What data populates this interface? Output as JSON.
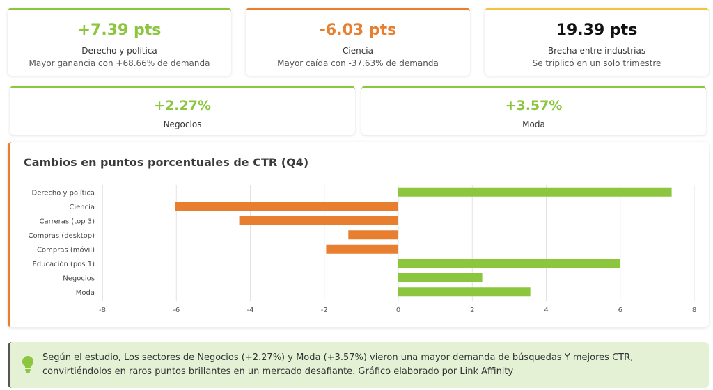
{
  "kpis_top": [
    {
      "value": "+7.39 pts",
      "label": "Derecho y política",
      "sub": "Mayor ganancia con +68.66% de demanda",
      "color": "#8cc63f"
    },
    {
      "value": "-6.03 pts",
      "label": "Ciencia",
      "sub": "Mayor caída con -37.63% de demanda",
      "color": "#e87e2f"
    },
    {
      "value": "19.39 pts",
      "label": "Brecha entre industrias",
      "sub": "Se triplicó en un solo trimestre",
      "color": "#111111"
    }
  ],
  "kpis_mid": [
    {
      "value": "+2.27%",
      "label": "Negocios",
      "color": "#8cc63f"
    },
    {
      "value": "+3.57%",
      "label": "Moda",
      "color": "#8cc63f"
    }
  ],
  "chart_data": {
    "type": "bar",
    "orientation": "horizontal",
    "title": "Cambios en puntos porcentuales de CTR (Q4)",
    "categories": [
      "Derecho y política",
      "Ciencia",
      "Carreras (top 3)",
      "Compras (desktop)",
      "Compras (móvil)",
      "Educación (pos 1)",
      "Negocios",
      "Moda"
    ],
    "values": [
      7.39,
      -6.03,
      -4.3,
      -1.35,
      -1.95,
      6.0,
      2.27,
      3.57
    ],
    "xlim": [
      -8,
      8
    ],
    "xticks": [
      -8,
      -6,
      -4,
      -2,
      0,
      2,
      4,
      6,
      8
    ],
    "grid": "vertical",
    "positive_color": "#8cc63f",
    "negative_color": "#e87e2f"
  },
  "note": {
    "text": "Según el estudio, Los sectores de Negocios (+2.27%) y Moda (+3.57%) vieron una mayor demanda de búsquedas Y mejores CTR, convirtiéndolos en raros puntos brillantes en un mercado desafiante. Gráfico elaborado por Link Affinity",
    "icon": "lightbulb-icon"
  }
}
